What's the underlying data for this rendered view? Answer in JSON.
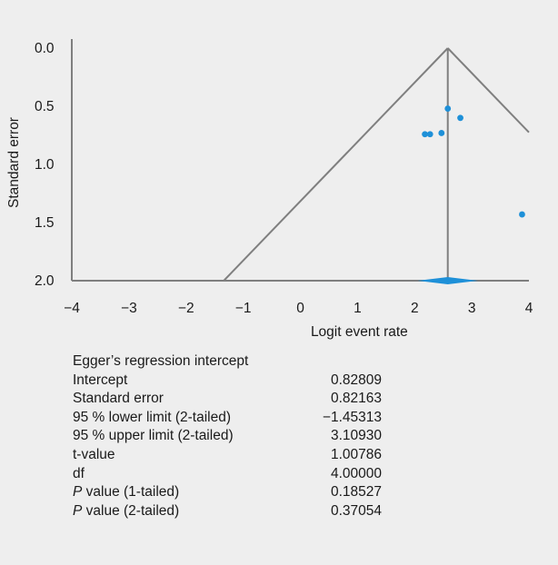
{
  "chart_data": {
    "type": "scatter",
    "subtype": "funnel plot",
    "xlabel": "Logit event rate",
    "ylabel": "Standard error",
    "xlim": [
      -4,
      4
    ],
    "ylim": [
      0.0,
      2.0
    ],
    "y_inverted": true,
    "x_ticks": [
      "−4",
      "−3",
      "−2",
      "−1",
      "0",
      "1",
      "2",
      "3",
      "4"
    ],
    "y_ticks": [
      "0.0",
      "0.5",
      "1.0",
      "1.5",
      "2.0"
    ],
    "pooled_estimate": 2.58,
    "pooled_ci": [
      2.05,
      3.11
    ],
    "points": [
      {
        "x": 2.58,
        "y": 0.52
      },
      {
        "x": 2.8,
        "y": 0.6
      },
      {
        "x": 2.18,
        "y": 0.74
      },
      {
        "x": 2.27,
        "y": 0.74
      },
      {
        "x": 2.47,
        "y": 0.73
      },
      {
        "x": 3.88,
        "y": 1.43
      }
    ],
    "colors": {
      "points": "#1e90d8",
      "funnel": "#7f7f7f",
      "diamond": "#1e90d8"
    },
    "grid": false
  },
  "stats": {
    "title": "Egger’s regression intercept",
    "rows": [
      {
        "label": "Intercept",
        "value": "0.82809"
      },
      {
        "label": "Standard error",
        "value": "0.82163"
      },
      {
        "label": "95 % lower limit (2-tailed)",
        "value": "−1.45313"
      },
      {
        "label": "95 % upper limit (2-tailed)",
        "value": "3.10930"
      },
      {
        "label": "t-value",
        "value": "1.00786"
      },
      {
        "label": "df",
        "value": "4.00000"
      },
      {
        "label": "P",
        "label_rest": " value (1-tailed)",
        "value": "0.18527"
      },
      {
        "label": "P",
        "label_rest": " value (2-tailed)",
        "value": "0.37054"
      }
    ]
  }
}
